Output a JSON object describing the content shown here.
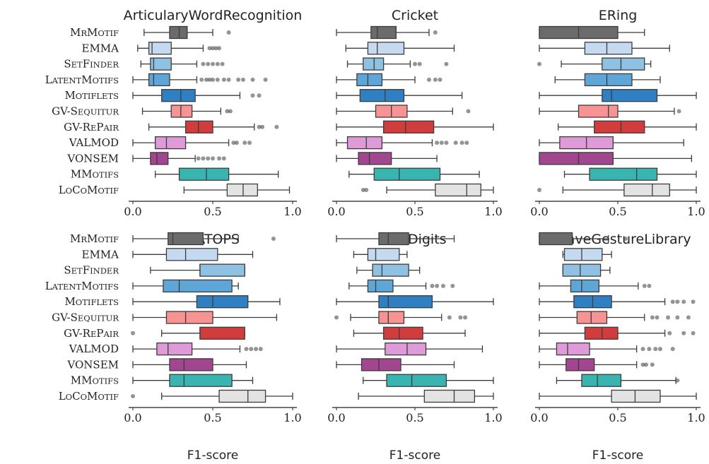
{
  "chart_data": {
    "type": "boxplot",
    "orientation": "horizontal",
    "xlabel": "F1-score",
    "xlim": [
      0,
      1
    ],
    "xticks": [
      "0.0",
      "0.5",
      "1.0"
    ],
    "methods": [
      {
        "id": "mrmotif",
        "label": "MrMotif",
        "color": "#6b6b6b"
      },
      {
        "id": "emma",
        "label": "EMMA",
        "color": "#c5daf0"
      },
      {
        "id": "setfinder",
        "label": "SetFinder",
        "color": "#8fc1e3"
      },
      {
        "id": "latentmotifs",
        "label": "LatentMotifs",
        "color": "#5ea6d8"
      },
      {
        "id": "motiflets",
        "label": "Motiflets",
        "color": "#2f7fc3"
      },
      {
        "id": "gv-sequitur",
        "label": "GV-Sequitur",
        "color": "#f79393"
      },
      {
        "id": "gv-repair",
        "label": "GV-RePair",
        "color": "#d13d3d"
      },
      {
        "id": "valmod",
        "label": "VALMOD",
        "color": "#df9ad8"
      },
      {
        "id": "vonsem",
        "label": "VONSEM",
        "color": "#a2468f"
      },
      {
        "id": "mmotifs",
        "label": "MMotifs",
        "color": "#3ab4b0"
      },
      {
        "id": "locomotif",
        "label": "LoCoMotif",
        "color": "#e3e3e3"
      }
    ],
    "panels": [
      {
        "title": "ArticularyWordRecognition",
        "boxes": [
          {
            "wlo": 0.07,
            "q1": 0.23,
            "med": 0.29,
            "q3": 0.34,
            "whi": 0.5,
            "fliers": [
              0.6
            ]
          },
          {
            "wlo": 0.03,
            "q1": 0.1,
            "med": 0.12,
            "q3": 0.24,
            "whi": 0.44,
            "fliers": [
              0.48,
              0.5,
              0.52,
              0.54
            ]
          },
          {
            "wlo": 0.05,
            "q1": 0.11,
            "med": 0.13,
            "q3": 0.24,
            "whi": 0.4,
            "fliers": [
              0.44,
              0.47,
              0.5,
              0.53,
              0.56
            ]
          },
          {
            "wlo": 0.0,
            "q1": 0.1,
            "med": 0.13,
            "q3": 0.23,
            "whi": 0.4,
            "fliers": [
              0.43,
              0.46,
              0.48,
              0.5,
              0.53,
              0.57,
              0.6,
              0.66,
              0.69,
              0.75,
              0.83
            ]
          },
          {
            "wlo": 0.0,
            "q1": 0.18,
            "med": 0.3,
            "q3": 0.39,
            "whi": 0.67,
            "fliers": [
              0.75,
              0.79
            ]
          },
          {
            "wlo": 0.06,
            "q1": 0.24,
            "med": 0.3,
            "q3": 0.37,
            "whi": 0.55,
            "fliers": [
              0.59,
              0.61
            ]
          },
          {
            "wlo": 0.1,
            "q1": 0.33,
            "med": 0.41,
            "q3": 0.5,
            "whi": 0.76,
            "fliers": [
              0.79,
              0.81,
              0.9
            ]
          },
          {
            "wlo": 0.0,
            "q1": 0.14,
            "med": 0.21,
            "q3": 0.33,
            "whi": 0.6,
            "fliers": [
              0.63,
              0.65,
              0.7,
              0.73
            ]
          },
          {
            "wlo": 0.0,
            "q1": 0.11,
            "med": 0.15,
            "q3": 0.22,
            "whi": 0.39,
            "fliers": [
              0.41,
              0.44,
              0.47,
              0.5,
              0.54,
              0.57
            ]
          },
          {
            "wlo": 0.14,
            "q1": 0.29,
            "med": 0.46,
            "q3": 0.6,
            "whi": 0.91,
            "fliers": []
          },
          {
            "wlo": 0.32,
            "q1": 0.59,
            "med": 0.69,
            "q3": 0.78,
            "whi": 0.98,
            "fliers": []
          }
        ]
      },
      {
        "title": "Cricket",
        "boxes": [
          {
            "wlo": 0.0,
            "q1": 0.22,
            "med": 0.26,
            "q3": 0.38,
            "whi": 0.59,
            "fliers": [
              0.63
            ]
          },
          {
            "wlo": 0.06,
            "q1": 0.2,
            "med": 0.26,
            "q3": 0.43,
            "whi": 0.75,
            "fliers": []
          },
          {
            "wlo": 0.07,
            "q1": 0.17,
            "med": 0.24,
            "q3": 0.3,
            "whi": 0.47,
            "fliers": [
              0.5,
              0.53,
              0.7
            ]
          },
          {
            "wlo": 0.0,
            "q1": 0.13,
            "med": 0.2,
            "q3": 0.29,
            "whi": 0.5,
            "fliers": [
              0.59,
              0.63,
              0.66
            ]
          },
          {
            "wlo": 0.0,
            "q1": 0.15,
            "med": 0.31,
            "q3": 0.43,
            "whi": 0.8,
            "fliers": []
          },
          {
            "wlo": 0.0,
            "q1": 0.25,
            "med": 0.35,
            "q3": 0.45,
            "whi": 0.74,
            "fliers": [
              0.84
            ]
          },
          {
            "wlo": 0.0,
            "q1": 0.3,
            "med": 0.44,
            "q3": 0.62,
            "whi": 1.0,
            "fliers": []
          },
          {
            "wlo": 0.0,
            "q1": 0.07,
            "med": 0.19,
            "q3": 0.29,
            "whi": 0.61,
            "fliers": [
              0.64,
              0.67,
              0.7,
              0.76,
              0.8,
              0.83
            ]
          },
          {
            "wlo": 0.0,
            "q1": 0.14,
            "med": 0.21,
            "q3": 0.35,
            "whi": 0.64,
            "fliers": []
          },
          {
            "wlo": 0.08,
            "q1": 0.24,
            "med": 0.4,
            "q3": 0.66,
            "whi": 0.91,
            "fliers": []
          },
          {
            "wlo": 0.32,
            "q1": 0.63,
            "med": 0.83,
            "q3": 0.92,
            "whi": 1.0,
            "fliers": [
              0.17,
              0.19
            ]
          }
        ]
      },
      {
        "title": "ERing",
        "boxes": [
          {
            "wlo": 0.0,
            "q1": 0.0,
            "med": 0.25,
            "q3": 0.5,
            "whi": 0.67,
            "fliers": []
          },
          {
            "wlo": 0.0,
            "q1": 0.29,
            "med": 0.43,
            "q3": 0.59,
            "whi": 0.83,
            "fliers": []
          },
          {
            "wlo": 0.14,
            "q1": 0.4,
            "med": 0.52,
            "q3": 0.67,
            "whi": 0.71,
            "fliers": [
              0.0
            ]
          },
          {
            "wlo": 0.1,
            "q1": 0.29,
            "med": 0.43,
            "q3": 0.59,
            "whi": 0.77,
            "fliers": []
          },
          {
            "wlo": 0.0,
            "q1": 0.4,
            "med": 0.46,
            "q3": 0.75,
            "whi": 1.0,
            "fliers": []
          },
          {
            "wlo": 0.0,
            "q1": 0.25,
            "med": 0.44,
            "q3": 0.5,
            "whi": 0.86,
            "fliers": [
              0.89
            ]
          },
          {
            "wlo": 0.12,
            "q1": 0.35,
            "med": 0.52,
            "q3": 0.67,
            "whi": 1.0,
            "fliers": []
          },
          {
            "wlo": 0.0,
            "q1": 0.13,
            "med": 0.3,
            "q3": 0.47,
            "whi": 0.92,
            "fliers": []
          },
          {
            "wlo": 0.0,
            "q1": 0.0,
            "med": 0.25,
            "q3": 0.47,
            "whi": 0.97,
            "fliers": []
          },
          {
            "wlo": 0.16,
            "q1": 0.32,
            "med": 0.62,
            "q3": 0.75,
            "whi": 1.0,
            "fliers": []
          },
          {
            "wlo": 0.15,
            "q1": 0.54,
            "med": 0.72,
            "q3": 0.83,
            "whi": 1.0,
            "fliers": [
              0.0
            ]
          }
        ]
      },
      {
        "title": "NATOPS",
        "boxes": [
          {
            "wlo": 0.0,
            "q1": 0.22,
            "med": 0.25,
            "q3": 0.44,
            "whi": 0.66,
            "fliers": [
              0.88
            ]
          },
          {
            "wlo": 0.0,
            "q1": 0.21,
            "med": 0.33,
            "q3": 0.53,
            "whi": 0.75,
            "fliers": []
          },
          {
            "wlo": 0.11,
            "q1": 0.42,
            "med": 0.42,
            "q3": 0.7,
            "whi": 0.7,
            "fliers": []
          },
          {
            "wlo": 0.0,
            "q1": 0.19,
            "med": 0.29,
            "q3": 0.62,
            "whi": 0.66,
            "fliers": []
          },
          {
            "wlo": 0.0,
            "q1": 0.4,
            "med": 0.5,
            "q3": 0.72,
            "whi": 0.92,
            "fliers": []
          },
          {
            "wlo": 0.0,
            "q1": 0.21,
            "med": 0.33,
            "q3": 0.5,
            "whi": 0.9,
            "fliers": []
          },
          {
            "wlo": 0.18,
            "q1": 0.42,
            "med": 0.42,
            "q3": 0.7,
            "whi": 0.7,
            "fliers": [
              0.0
            ]
          },
          {
            "wlo": 0.0,
            "q1": 0.15,
            "med": 0.22,
            "q3": 0.37,
            "whi": 0.67,
            "fliers": [
              0.71,
              0.74,
              0.77,
              0.8
            ]
          },
          {
            "wlo": 0.0,
            "q1": 0.23,
            "med": 0.32,
            "q3": 0.5,
            "whi": 0.71,
            "fliers": []
          },
          {
            "wlo": 0.0,
            "q1": 0.23,
            "med": 0.32,
            "q3": 0.62,
            "whi": 0.75,
            "fliers": []
          },
          {
            "wlo": 0.18,
            "q1": 0.54,
            "med": 0.72,
            "q3": 0.83,
            "whi": 1.0,
            "fliers": [
              0.0
            ]
          }
        ]
      },
      {
        "title": "PenDigits",
        "boxes": [
          {
            "wlo": 0.0,
            "q1": 0.27,
            "med": 0.33,
            "q3": 0.46,
            "whi": 0.75,
            "fliers": []
          },
          {
            "wlo": 0.11,
            "q1": 0.2,
            "med": 0.25,
            "q3": 0.4,
            "whi": 0.45,
            "fliers": []
          },
          {
            "wlo": 0.13,
            "q1": 0.23,
            "med": 0.29,
            "q3": 0.46,
            "whi": 0.53,
            "fliers": []
          },
          {
            "wlo": 0.08,
            "q1": 0.2,
            "med": 0.25,
            "q3": 0.36,
            "whi": 0.57,
            "fliers": [
              0.61,
              0.64,
              0.68,
              0.74
            ]
          },
          {
            "wlo": 0.0,
            "q1": 0.27,
            "med": 0.33,
            "q3": 0.61,
            "whi": 1.0,
            "fliers": []
          },
          {
            "wlo": 0.09,
            "q1": 0.27,
            "med": 0.33,
            "q3": 0.43,
            "whi": 0.67,
            "fliers": [
              0.0,
              0.72,
              0.79,
              0.82
            ]
          },
          {
            "wlo": 0.11,
            "q1": 0.3,
            "med": 0.4,
            "q3": 0.55,
            "whi": 0.82,
            "fliers": []
          },
          {
            "wlo": 0.0,
            "q1": 0.31,
            "med": 0.45,
            "q3": 0.57,
            "whi": 0.93,
            "fliers": []
          },
          {
            "wlo": 0.0,
            "q1": 0.16,
            "med": 0.27,
            "q3": 0.41,
            "whi": 0.75,
            "fliers": []
          },
          {
            "wlo": 0.17,
            "q1": 0.32,
            "med": 0.48,
            "q3": 0.7,
            "whi": 1.0,
            "fliers": []
          },
          {
            "wlo": 0.14,
            "q1": 0.56,
            "med": 0.75,
            "q3": 0.88,
            "whi": 1.0,
            "fliers": []
          }
        ]
      },
      {
        "title": "UWaveGestureLibrary",
        "boxes": [
          {
            "wlo": 0.0,
            "q1": 0.0,
            "med": 0.0,
            "q3": 0.21,
            "whi": 0.44,
            "fliers": [
              0.55
            ]
          },
          {
            "wlo": 0.15,
            "q1": 0.16,
            "med": 0.27,
            "q3": 0.4,
            "whi": 0.46,
            "fliers": []
          },
          {
            "wlo": 0.15,
            "q1": 0.15,
            "med": 0.26,
            "q3": 0.39,
            "whi": 0.45,
            "fliers": []
          },
          {
            "wlo": 0.0,
            "q1": 0.2,
            "med": 0.27,
            "q3": 0.38,
            "whi": 0.63,
            "fliers": [
              0.67,
              0.7
            ]
          },
          {
            "wlo": 0.0,
            "q1": 0.22,
            "med": 0.34,
            "q3": 0.46,
            "whi": 0.8,
            "fliers": [
              0.85,
              0.88,
              0.92,
              0.98
            ]
          },
          {
            "wlo": 0.0,
            "q1": 0.24,
            "med": 0.33,
            "q3": 0.43,
            "whi": 0.67,
            "fliers": [
              0.72,
              0.75,
              0.82,
              0.88,
              0.95
            ]
          },
          {
            "wlo": 0.0,
            "q1": 0.29,
            "med": 0.4,
            "q3": 0.5,
            "whi": 0.8,
            "fliers": [
              0.83,
              0.92,
              0.98
            ]
          },
          {
            "wlo": 0.0,
            "q1": 0.11,
            "med": 0.18,
            "q3": 0.32,
            "whi": 0.62,
            "fliers": [
              0.66,
              0.7,
              0.74,
              0.77,
              0.85
            ]
          },
          {
            "wlo": 0.0,
            "q1": 0.17,
            "med": 0.25,
            "q3": 0.35,
            "whi": 0.62,
            "fliers": [
              0.66,
              0.68,
              0.72
            ]
          },
          {
            "wlo": 0.11,
            "q1": 0.27,
            "med": 0.37,
            "q3": 0.52,
            "whi": 0.87,
            "fliers": [
              0.88
            ]
          },
          {
            "wlo": 0.0,
            "q1": 0.46,
            "med": 0.61,
            "q3": 0.77,
            "whi": 1.0,
            "fliers": []
          }
        ]
      }
    ]
  }
}
